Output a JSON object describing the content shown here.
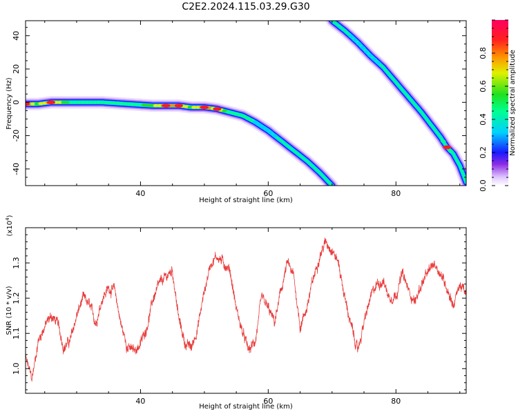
{
  "title": "C2E2.2024.115.03.29.G30",
  "chart_data": [
    {
      "type": "heatmap",
      "xlabel": "Height of straight line (km)",
      "ylabel": "Frequency (Hz)",
      "xlim": [
        22,
        91
      ],
      "ylim": [
        -50,
        49
      ],
      "xticks": [
        40,
        60,
        80
      ],
      "xtick_labels": [
        "40",
        "60",
        "80"
      ],
      "yticks": [
        -40,
        -20,
        0,
        20,
        40
      ],
      "ytick_labels": [
        "-40",
        "-20",
        "0",
        "20",
        "40"
      ],
      "colorbar": {
        "label": "Normalized spectral amplitude",
        "range": [
          0,
          1
        ],
        "ticks": [
          0,
          0.2,
          0.4,
          0.6,
          0.8
        ],
        "tick_labels": [
          "0.0",
          "0.2",
          "0.4",
          "0.6",
          "0.8"
        ]
      },
      "traces": [
        {
          "x": [
            22,
            24,
            26,
            30,
            34,
            38,
            42,
            44,
            46,
            48,
            50,
            52,
            54,
            56,
            58,
            60,
            62,
            64,
            66,
            68,
            70
          ],
          "y": [
            -1,
            -1,
            0,
            0,
            0,
            -1,
            -2,
            -2,
            -2,
            -3,
            -3,
            -4,
            -6,
            -8,
            -12,
            -17,
            -23,
            -29,
            -35,
            -42,
            -50
          ],
          "amplitude": [
            0.9,
            0.7,
            0.85,
            0.55,
            0.5,
            0.5,
            0.7,
            0.9,
            0.8,
            0.7,
            0.85,
            0.8,
            0.6,
            0.55,
            0.5,
            0.45,
            0.4,
            0.35,
            0.3,
            0.25,
            0.2
          ]
        },
        {
          "x": [
            70,
            72,
            74,
            76,
            78,
            80,
            82,
            84,
            86,
            87,
            88,
            89,
            90,
            91
          ],
          "y": [
            49,
            43,
            36,
            28,
            21,
            12,
            3,
            -6,
            -16,
            -21,
            -27,
            -31,
            -38,
            -48
          ],
          "amplitude": [
            0.35,
            0.4,
            0.45,
            0.45,
            0.4,
            0.4,
            0.35,
            0.35,
            0.3,
            0.35,
            0.9,
            0.25,
            0.2,
            0.15
          ]
        }
      ]
    },
    {
      "type": "line",
      "xlabel": "Height of straight line (km)",
      "ylabel": "SNR (10 * v/v)",
      "multiplier_label": "(x10",
      "multiplier_exp": "4",
      "multiplier_close": ")",
      "xlim": [
        22,
        91
      ],
      "ylim": [
        0.93,
        1.4
      ],
      "xticks": [
        40,
        60,
        80
      ],
      "xtick_labels": [
        "40",
        "60",
        "80"
      ],
      "yticks": [
        1.0,
        1.1,
        1.2,
        1.3
      ],
      "ytick_labels": [
        "1.0",
        "1.1",
        "1.2",
        "1.3"
      ],
      "series": [
        {
          "color": "#e83c3c",
          "x": [
            22,
            23,
            24,
            25,
            26,
            27,
            28,
            29,
            30,
            31,
            32,
            33,
            34,
            35,
            36,
            37,
            38,
            39,
            40,
            41,
            42,
            43,
            44,
            45,
            46,
            47,
            48,
            49,
            50,
            51,
            52,
            53,
            54,
            55,
            56,
            57,
            58,
            59,
            60,
            61,
            62,
            63,
            64,
            65,
            66,
            67,
            68,
            69,
            70,
            71,
            72,
            73,
            74,
            75,
            76,
            77,
            78,
            79,
            80,
            81,
            82,
            83,
            84,
            85,
            86,
            87,
            88,
            89,
            90,
            91
          ],
          "values": [
            1.03,
            0.97,
            1.08,
            1.12,
            1.15,
            1.13,
            1.06,
            1.08,
            1.15,
            1.2,
            1.18,
            1.13,
            1.2,
            1.23,
            1.22,
            1.12,
            1.06,
            1.05,
            1.07,
            1.12,
            1.2,
            1.24,
            1.26,
            1.28,
            1.14,
            1.07,
            1.06,
            1.12,
            1.22,
            1.3,
            1.32,
            1.3,
            1.28,
            1.17,
            1.1,
            1.05,
            1.08,
            1.2,
            1.17,
            1.13,
            1.22,
            1.3,
            1.26,
            1.12,
            1.17,
            1.25,
            1.32,
            1.36,
            1.34,
            1.3,
            1.2,
            1.12,
            1.05,
            1.13,
            1.2,
            1.24,
            1.25,
            1.2,
            1.21,
            1.27,
            1.22,
            1.19,
            1.24,
            1.27,
            1.3,
            1.27,
            1.23,
            1.18,
            1.24,
            1.21
          ]
        }
      ]
    }
  ]
}
